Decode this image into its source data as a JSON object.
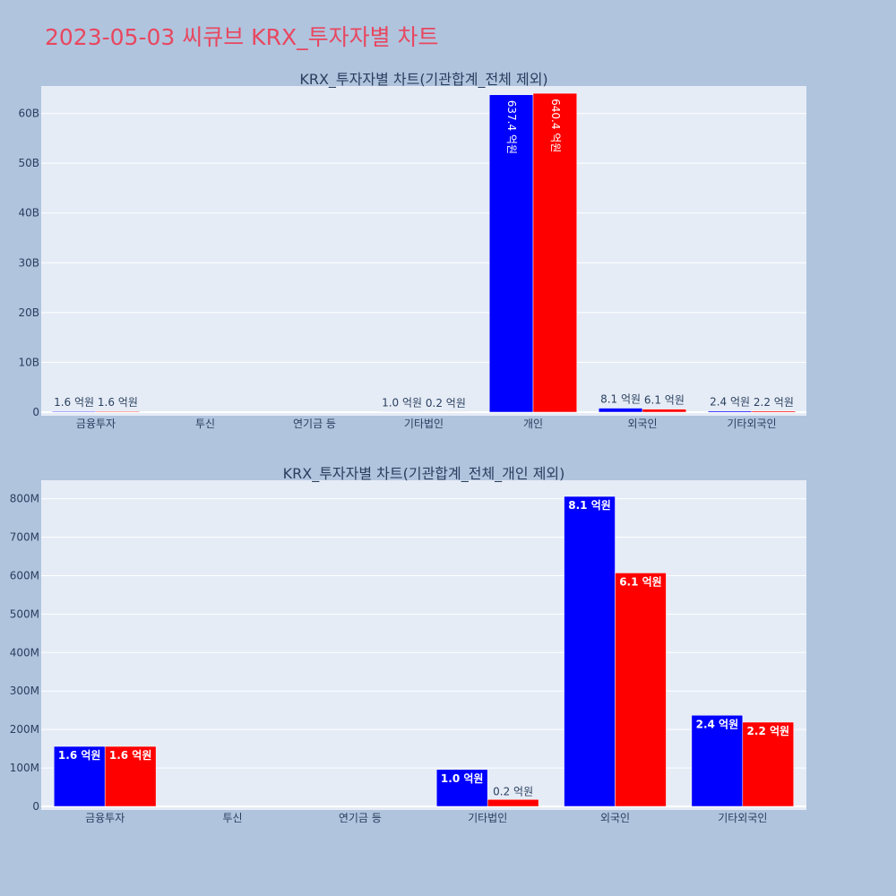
{
  "page": {
    "title": "2023-05-03 씨큐브 KRX_투자자별 차트"
  },
  "colors": {
    "background": "#b0c4de",
    "plot_bg": "#e5ecf6",
    "buy": "#0000ff",
    "sell": "#ff0000",
    "title": "#e8475f",
    "text": "#2a3f5f"
  },
  "chart_data": [
    {
      "type": "bar",
      "title": "KRX_투자자별 차트(기관합계_전체 제외)",
      "categories": [
        "금융투자",
        "투신",
        "연기금 등",
        "기타법인",
        "개인",
        "외국인",
        "기타외국인"
      ],
      "series": [
        {
          "color": "#0000ff",
          "values": [
            156000000,
            0,
            0,
            96000000,
            63740000000,
            806000000,
            237000000
          ],
          "labels": [
            "1.6 억원",
            "",
            "",
            "1.0 억원",
            "637.4 억원",
            "8.1 억원",
            "2.4 억원"
          ]
        },
        {
          "color": "#ff0000",
          "values": [
            156000000,
            0,
            0,
            18000000,
            64040000000,
            607000000,
            219000000
          ],
          "labels": [
            "1.6 억원",
            "",
            "",
            "0.2 억원",
            "640.4 억원",
            "6.1 억원",
            "2.2 억원"
          ]
        }
      ],
      "ylim": [
        0,
        65500000000
      ],
      "yticks": [
        0,
        10000000000,
        20000000000,
        30000000000,
        40000000000,
        50000000000,
        60000000000
      ],
      "ytick_labels": [
        "0",
        "10B",
        "20B",
        "30B",
        "40B",
        "50B",
        "60B"
      ],
      "grid": true
    },
    {
      "type": "bar",
      "title": "KRX_투자자별 차트(기관합계_전체_개인 제외)",
      "categories": [
        "금융투자",
        "투신",
        "연기금 등",
        "기타법인",
        "외국인",
        "기타외국인"
      ],
      "series": [
        {
          "color": "#0000ff",
          "values": [
            156000000,
            0,
            0,
            96000000,
            806000000,
            237000000
          ],
          "labels": [
            "1.6 억원",
            "",
            "",
            "1.0 억원",
            "8.1 억원",
            "2.4 억원"
          ]
        },
        {
          "color": "#ff0000",
          "values": [
            156000000,
            0,
            0,
            18000000,
            607000000,
            219000000
          ],
          "labels": [
            "1.6 억원",
            "",
            "",
            "0.2 억원",
            "6.1 억원",
            "2.2 억원"
          ]
        }
      ],
      "ylim": [
        0,
        848000000
      ],
      "yticks": [
        0,
        100000000,
        200000000,
        300000000,
        400000000,
        500000000,
        600000000,
        700000000,
        800000000
      ],
      "ytick_labels": [
        "0",
        "100M",
        "200M",
        "300M",
        "400M",
        "500M",
        "600M",
        "700M",
        "800M"
      ],
      "grid": true
    }
  ]
}
